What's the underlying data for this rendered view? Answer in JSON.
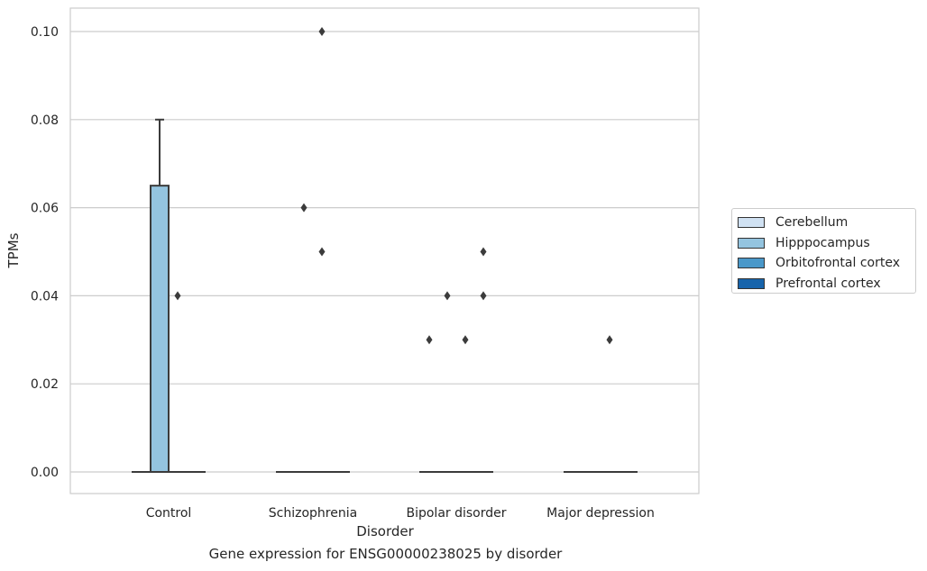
{
  "chart_data": {
    "type": "boxplot",
    "title": "Gene expression for ENSG00000238025 by disorder",
    "xlabel": "Disorder",
    "ylabel": "TPMs",
    "ylim": [
      -0.005,
      0.105
    ],
    "yticks": [
      0.0,
      0.02,
      0.04,
      0.06,
      0.08,
      0.1
    ],
    "ytick_labels": [
      "0.00",
      "0.02",
      "0.04",
      "0.06",
      "0.08",
      "0.10"
    ],
    "grid": true,
    "legend_placement": "center-right outside",
    "categories": [
      "Control",
      "Schizophrenia",
      "Bipolar disorder",
      "Major depression"
    ],
    "series": [
      {
        "name": "Cerebellum",
        "color": "#d0e1f2",
        "boxes": [
          {
            "q1": 0,
            "median": 0,
            "q3": 0,
            "whisker_low": 0,
            "whisker_high": 0,
            "outliers": []
          },
          {
            "q1": 0,
            "median": 0,
            "q3": 0,
            "whisker_low": 0,
            "whisker_high": 0,
            "outliers": []
          },
          {
            "q1": 0,
            "median": 0,
            "q3": 0,
            "whisker_low": 0,
            "whisker_high": 0,
            "outliers": [
              0.03
            ]
          },
          {
            "q1": 0,
            "median": 0,
            "q3": 0,
            "whisker_low": 0,
            "whisker_high": 0,
            "outliers": []
          }
        ]
      },
      {
        "name": "Hipppocampus",
        "color": "#94c4df",
        "boxes": [
          {
            "q1": 0,
            "median": 0,
            "q3": 0.065,
            "whisker_low": 0,
            "whisker_high": 0.08,
            "outliers": []
          },
          {
            "q1": 0,
            "median": 0,
            "q3": 0,
            "whisker_low": 0,
            "whisker_high": 0,
            "outliers": [
              0.06
            ]
          },
          {
            "q1": 0,
            "median": 0,
            "q3": 0,
            "whisker_low": 0,
            "whisker_high": 0,
            "outliers": [
              0.04
            ]
          },
          {
            "q1": 0,
            "median": 0,
            "q3": 0,
            "whisker_low": 0,
            "whisker_high": 0,
            "outliers": []
          }
        ]
      },
      {
        "name": "Orbitofrontal cortex",
        "color": "#4a98c9",
        "boxes": [
          {
            "q1": 0,
            "median": 0,
            "q3": 0,
            "whisker_low": 0,
            "whisker_high": 0,
            "outliers": [
              0.04
            ]
          },
          {
            "q1": 0,
            "median": 0,
            "q3": 0,
            "whisker_low": 0,
            "whisker_high": 0,
            "outliers": [
              0.1,
              0.05
            ]
          },
          {
            "q1": 0,
            "median": 0,
            "q3": 0,
            "whisker_low": 0,
            "whisker_high": 0,
            "outliers": [
              0.03
            ]
          },
          {
            "q1": 0,
            "median": 0,
            "q3": 0,
            "whisker_low": 0,
            "whisker_high": 0,
            "outliers": [
              0.03
            ]
          }
        ]
      },
      {
        "name": "Prefrontal cortex",
        "color": "#1764ab",
        "boxes": [
          {
            "q1": 0,
            "median": 0,
            "q3": 0,
            "whisker_low": 0,
            "whisker_high": 0,
            "outliers": []
          },
          {
            "q1": 0,
            "median": 0,
            "q3": 0,
            "whisker_low": 0,
            "whisker_high": 0,
            "outliers": []
          },
          {
            "q1": 0,
            "median": 0,
            "q3": 0,
            "whisker_low": 0,
            "whisker_high": 0,
            "outliers": [
              0.05,
              0.04
            ]
          },
          {
            "q1": 0,
            "median": 0,
            "q3": 0,
            "whisker_low": 0,
            "whisker_high": 0,
            "outliers": []
          }
        ]
      }
    ],
    "colors": {
      "grid": "#cccccc",
      "frame": "#cccccc",
      "box_edge": "#3b3b3b"
    }
  }
}
